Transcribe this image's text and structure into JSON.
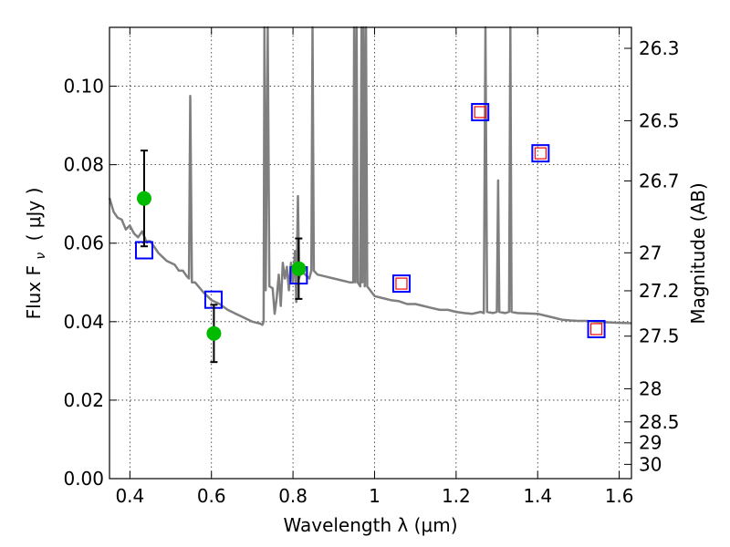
{
  "chart_data": {
    "type": "scatter",
    "title": "",
    "xlabel": "Wavelength  λ (μm)",
    "ylabel": "Flux  F",
    "ylabel_sub": "ν",
    "ylabel_unit": "( μJy )",
    "y2label": "Magnitude (AB)",
    "xlim": [
      0.35,
      1.63
    ],
    "ylim": [
      0.0,
      0.115
    ],
    "grid": true,
    "x_ticks": [
      0.4,
      0.6,
      0.8,
      1.0,
      1.2,
      1.4,
      1.6
    ],
    "x_tick_labels": [
      "0.4",
      "0.6",
      "0.8",
      "1",
      "1.2",
      "1.4",
      "1.6"
    ],
    "y_ticks": [
      0.0,
      0.02,
      0.04,
      0.06,
      0.08,
      0.1
    ],
    "y_tick_labels": [
      "0.00",
      "0.02",
      "0.04",
      "0.06",
      "0.08",
      "0.10"
    ],
    "y2_ticks": [
      26.3,
      26.5,
      26.7,
      27.0,
      27.2,
      27.5,
      28.0,
      28.5,
      29.0,
      30.0
    ],
    "y2_tick_labels": [
      "26.3",
      "26.5",
      "26.7",
      "27",
      "27.2",
      "27.5",
      "28",
      "28.5",
      "29",
      "30"
    ],
    "series": [
      {
        "kind": "line",
        "color": "#7f7f7f",
        "points": [
          [
            0.35,
            0.0715
          ],
          [
            0.36,
            0.068
          ],
          [
            0.37,
            0.0665
          ],
          [
            0.38,
            0.066
          ],
          [
            0.39,
            0.0635
          ],
          [
            0.4,
            0.0645
          ],
          [
            0.41,
            0.0625
          ],
          [
            0.42,
            0.0615
          ],
          [
            0.43,
            0.063
          ],
          [
            0.44,
            0.0605
          ],
          [
            0.45,
            0.0605
          ],
          [
            0.46,
            0.059
          ],
          [
            0.47,
            0.0575
          ],
          [
            0.48,
            0.0565
          ],
          [
            0.49,
            0.0555
          ],
          [
            0.5,
            0.055
          ],
          [
            0.51,
            0.0545
          ],
          [
            0.52,
            0.053
          ],
          [
            0.53,
            0.053
          ],
          [
            0.54,
            0.0515
          ],
          [
            0.545,
            0.051
          ],
          [
            0.548,
            0.0975
          ],
          [
            0.552,
            0.05
          ],
          [
            0.56,
            0.05
          ],
          [
            0.58,
            0.0475
          ],
          [
            0.6,
            0.0455
          ],
          [
            0.62,
            0.0445
          ],
          [
            0.64,
            0.043
          ],
          [
            0.66,
            0.042
          ],
          [
            0.68,
            0.041
          ],
          [
            0.7,
            0.04
          ],
          [
            0.72,
            0.0395
          ],
          [
            0.725,
            0.0392
          ],
          [
            0.728,
            0.04
          ],
          [
            0.73,
            0.115
          ],
          [
            0.733,
            0.048
          ],
          [
            0.738,
            0.115
          ],
          [
            0.742,
            0.049
          ],
          [
            0.75,
            0.0485
          ],
          [
            0.755,
            0.042
          ],
          [
            0.76,
            0.046
          ],
          [
            0.765,
            0.052
          ],
          [
            0.77,
            0.044
          ],
          [
            0.775,
            0.055
          ],
          [
            0.78,
            0.051
          ],
          [
            0.785,
            0.054
          ],
          [
            0.79,
            0.048
          ],
          [
            0.795,
            0.055
          ],
          [
            0.8,
            0.05
          ],
          [
            0.805,
            0.058
          ],
          [
            0.808,
            0.045
          ],
          [
            0.812,
            0.072
          ],
          [
            0.815,
            0.051
          ],
          [
            0.82,
            0.053
          ],
          [
            0.83,
            0.052
          ],
          [
            0.84,
            0.051
          ],
          [
            0.845,
            0.053
          ],
          [
            0.848,
            0.115
          ],
          [
            0.851,
            0.053
          ],
          [
            0.86,
            0.052
          ],
          [
            0.88,
            0.0515
          ],
          [
            0.9,
            0.051
          ],
          [
            0.92,
            0.0505
          ],
          [
            0.94,
            0.05
          ],
          [
            0.948,
            0.05
          ],
          [
            0.95,
            0.115
          ],
          [
            0.953,
            0.05
          ],
          [
            0.956,
            0.115
          ],
          [
            0.959,
            0.05
          ],
          [
            0.965,
            0.049
          ],
          [
            0.968,
            0.115
          ],
          [
            0.97,
            0.05
          ],
          [
            0.973,
            0.115
          ],
          [
            0.976,
            0.049
          ],
          [
            0.979,
            0.115
          ],
          [
            0.982,
            0.049
          ],
          [
            1.0,
            0.0465
          ],
          [
            1.02,
            0.046
          ],
          [
            1.04,
            0.0455
          ],
          [
            1.06,
            0.0452
          ],
          [
            1.08,
            0.0445
          ],
          [
            1.1,
            0.0445
          ],
          [
            1.12,
            0.044
          ],
          [
            1.14,
            0.0435
          ],
          [
            1.16,
            0.043
          ],
          [
            1.18,
            0.043
          ],
          [
            1.2,
            0.0425
          ],
          [
            1.22,
            0.0422
          ],
          [
            1.24,
            0.042
          ],
          [
            1.26,
            0.0425
          ],
          [
            1.268,
            0.0422
          ],
          [
            1.272,
            0.115
          ],
          [
            1.276,
            0.0425
          ],
          [
            1.29,
            0.0422
          ],
          [
            1.3,
            0.0425
          ],
          [
            1.303,
            0.076
          ],
          [
            1.306,
            0.0425
          ],
          [
            1.32,
            0.0422
          ],
          [
            1.33,
            0.0425
          ],
          [
            1.333,
            0.115
          ],
          [
            1.336,
            0.0425
          ],
          [
            1.35,
            0.0422
          ],
          [
            1.4,
            0.042
          ],
          [
            1.42,
            0.0415
          ],
          [
            1.44,
            0.041
          ],
          [
            1.46,
            0.0405
          ],
          [
            1.48,
            0.0403
          ],
          [
            1.5,
            0.0402
          ],
          [
            1.52,
            0.0402
          ],
          [
            1.54,
            0.04
          ],
          [
            1.56,
            0.0399
          ],
          [
            1.58,
            0.0398
          ],
          [
            1.6,
            0.0397
          ],
          [
            1.63,
            0.0396
          ]
        ]
      },
      {
        "kind": "blue-squares",
        "color": "#0000ff",
        "x": [
          0.435,
          0.605,
          0.814,
          1.066,
          1.259,
          1.407,
          1.544
        ],
        "y": [
          0.0582,
          0.0456,
          0.0518,
          0.0497,
          0.0934,
          0.0829,
          0.0381
        ]
      },
      {
        "kind": "red-squares",
        "color": "#ff0000",
        "x": [
          1.066,
          1.259,
          1.407,
          1.544
        ],
        "y": [
          0.0497,
          0.0934,
          0.0829,
          0.0381
        ]
      },
      {
        "kind": "green-points",
        "color": "#00bb00",
        "x": [
          0.435,
          0.606,
          0.814
        ],
        "y": [
          0.0714,
          0.037,
          0.0535
        ],
        "yerr": [
          0.0122,
          0.0073,
          0.0077
        ]
      }
    ]
  }
}
